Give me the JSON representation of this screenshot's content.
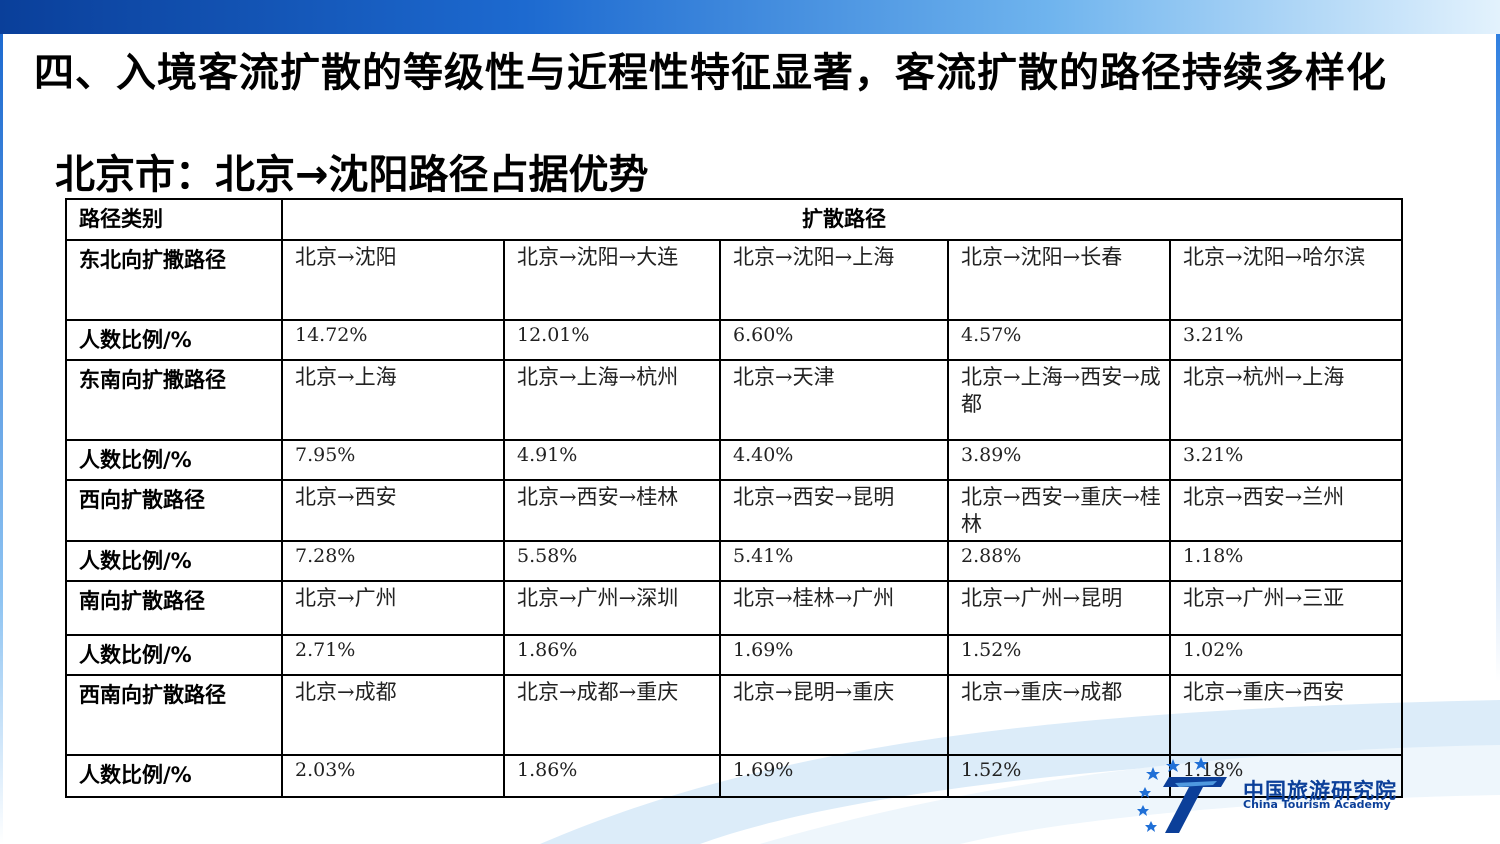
{
  "slide": {
    "title": "四、入境客流扩散的等级性与近程性特征显著，客流扩散的路径持续多样化",
    "subtitle": "北京市：北京→沈阳路径占据优势"
  },
  "table": {
    "header": {
      "category": "路径类别",
      "paths": "扩散路径"
    },
    "groups": [
      {
        "category": "东北向扩撒路径",
        "ratio_label": "人数比例/%",
        "paths": [
          "北京→沈阳",
          "北京→沈阳→大连",
          "北京→沈阳→上海",
          "北京→沈阳→长春",
          "北京→沈阳→哈尔滨"
        ],
        "values": [
          "14.72%",
          "12.01%",
          "6.60%",
          "4.57%",
          "3.21%"
        ]
      },
      {
        "category": "东南向扩撒路径",
        "ratio_label": "人数比例/%",
        "paths": [
          "北京→上海",
          "北京→上海→杭州",
          "北京→天津",
          "北京→上海→西安→成都",
          "北京→杭州→上海"
        ],
        "values": [
          "7.95%",
          "4.91%",
          "4.40%",
          "3.89%",
          "3.21%"
        ]
      },
      {
        "category": "西向扩散路径",
        "ratio_label": "人数比例/%",
        "paths": [
          "北京→西安",
          "北京→西安→桂林",
          "北京→西安→昆明",
          "北京→西安→重庆→桂林",
          "北京→西安→兰州"
        ],
        "values": [
          "7.28%",
          "5.58%",
          "5.41%",
          "2.88%",
          "1.18%"
        ]
      },
      {
        "category": "南向扩散路径",
        "ratio_label": "人数比例/%",
        "paths": [
          "北京→广州",
          "北京→广州→深圳",
          "北京→桂林→广州",
          "北京→广州→昆明",
          "北京→广州→三亚"
        ],
        "values": [
          "2.71%",
          "1.86%",
          "1.69%",
          "1.52%",
          "1.02%"
        ]
      },
      {
        "category": "西南向扩散路径",
        "ratio_label": "人数比例/%",
        "paths": [
          "北京→成都",
          "北京→成都→重庆",
          "北京→昆明→重庆",
          "北京→重庆→成都",
          "北京→重庆→西安"
        ],
        "values": [
          "2.03%",
          "1.86%",
          "1.69%",
          "1.52%",
          "1.18%"
        ]
      }
    ]
  },
  "logo": {
    "name_cn": "中国旅游研究院",
    "name_en": "China Tourism Academy"
  },
  "colors": {
    "header_bar_start": "#0a3f9a",
    "header_bar_end": "#e3f2fd",
    "logo_blue": "#0b3f99"
  }
}
